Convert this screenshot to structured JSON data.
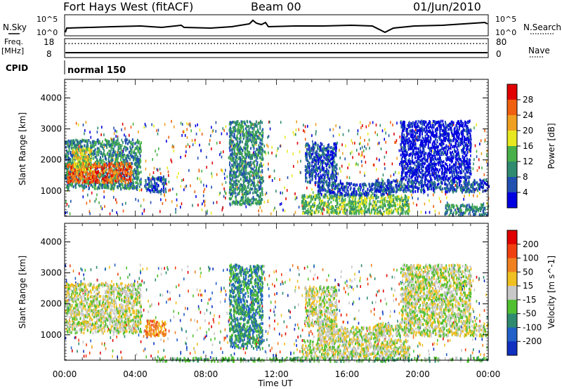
{
  "header": {
    "station": "Fort Hays West (fitACF)",
    "beam": "Beam 00",
    "date": "01/Jun/2010"
  },
  "status_panel": {
    "nsky_label": "N.Sky",
    "nsky_ticks": [
      "10^5",
      "10^0"
    ],
    "nsearch_label": "N.Search",
    "nsearch_ticks": [
      "10^5",
      "10^0"
    ],
    "freq_label": "Freq.",
    "freq_unit": "[MHz]",
    "freq_ticks": [
      "18",
      "8"
    ],
    "nave_label": "Nave",
    "nave_ticks": [
      "80",
      "0"
    ],
    "cpid_label": "CPID",
    "cpid_value": "normal 150"
  },
  "chart_data": [
    {
      "type": "heatmap",
      "name": "power",
      "ylabel": "Slant Range [km]",
      "ylim": [
        180,
        4600
      ],
      "yticks": [
        "1000",
        "2000",
        "3000",
        "4000"
      ],
      "xlim": [
        0,
        24
      ],
      "colorbar_label": "Power [dB]",
      "colorbar_ticks": [
        "4",
        "8",
        "12",
        "16",
        "20",
        "24",
        "28"
      ],
      "colorbar_colors": [
        "#0000e0",
        "#2050b0",
        "#2e8b70",
        "#48b048",
        "#e8e820",
        "#f0a020",
        "#f06010",
        "#e00000"
      ],
      "patches": [
        {
          "t0": 0.0,
          "t1": 4.3,
          "r0": 1100,
          "r1": 2700,
          "level": 2
        },
        {
          "t0": 0.1,
          "t1": 3.8,
          "r0": 1300,
          "r1": 1950,
          "level": 6
        },
        {
          "t0": 0.4,
          "t1": 1.5,
          "r0": 1700,
          "r1": 2400,
          "level": 4
        },
        {
          "t0": 4.5,
          "t1": 5.7,
          "r0": 1000,
          "r1": 1500,
          "level": 1
        },
        {
          "t0": 9.3,
          "t1": 11.2,
          "r0": 600,
          "r1": 3300,
          "level": 2
        },
        {
          "t0": 13.6,
          "t1": 15.4,
          "r0": 1300,
          "r1": 2600,
          "level": 1
        },
        {
          "t0": 13.4,
          "t1": 19.5,
          "r0": 300,
          "r1": 900,
          "level": 3
        },
        {
          "t0": 14.3,
          "t1": 18.4,
          "r0": 900,
          "r1": 1300,
          "level": 1
        },
        {
          "t0": 17.5,
          "t1": 24.0,
          "r0": 1000,
          "r1": 1400,
          "level": 1
        },
        {
          "t0": 19.0,
          "t1": 23.0,
          "r0": 1400,
          "r1": 3300,
          "level": 0
        },
        {
          "t0": 21.5,
          "t1": 24.0,
          "r0": 250,
          "r1": 600,
          "level": 2
        }
      ]
    },
    {
      "type": "heatmap",
      "name": "velocity",
      "ylabel": "Slant Range [km]",
      "ylim": [
        180,
        4600
      ],
      "yticks": [
        "1000",
        "2000",
        "3000",
        "4000"
      ],
      "xlim": [
        0,
        24
      ],
      "xlabel": "Time UT",
      "xticks": [
        "00:00",
        "04:00",
        "08:00",
        "12:00",
        "16:00",
        "20:00",
        "00:00"
      ],
      "colorbar_label": "Velocity [m s^-1]",
      "colorbar_ticks": [
        "200",
        "100",
        "50",
        "15",
        "-15",
        "-50",
        "-100",
        "-200"
      ],
      "colorbar_colors": [
        "#1030c0",
        "#2060c8",
        "#2e8b70",
        "#50c030",
        "#c8c8c8",
        "#f0c020",
        "#f08020",
        "#f04010",
        "#e00000"
      ],
      "patches": [
        {
          "t0": 0.0,
          "t1": 4.3,
          "r0": 1100,
          "r1": 2700,
          "level": 4
        },
        {
          "t0": 4.5,
          "t1": 5.7,
          "r0": 1000,
          "r1": 1500,
          "level": 6
        },
        {
          "t0": 9.3,
          "t1": 11.2,
          "r0": 600,
          "r1": 3300,
          "level": 2
        },
        {
          "t0": 13.6,
          "t1": 15.4,
          "r0": 1300,
          "r1": 2600,
          "level": 4
        },
        {
          "t0": 13.4,
          "t1": 19.5,
          "r0": 300,
          "r1": 900,
          "level": 4
        },
        {
          "t0": 14.3,
          "t1": 18.4,
          "r0": 900,
          "r1": 1300,
          "level": 4
        },
        {
          "t0": 17.5,
          "t1": 24.0,
          "r0": 1000,
          "r1": 1400,
          "level": 4
        },
        {
          "t0": 19.0,
          "t1": 23.0,
          "r0": 1400,
          "r1": 3300,
          "level": 4
        },
        {
          "t0": 5.0,
          "t1": 24.0,
          "r0": 180,
          "r1": 300,
          "level": 3
        }
      ]
    }
  ]
}
